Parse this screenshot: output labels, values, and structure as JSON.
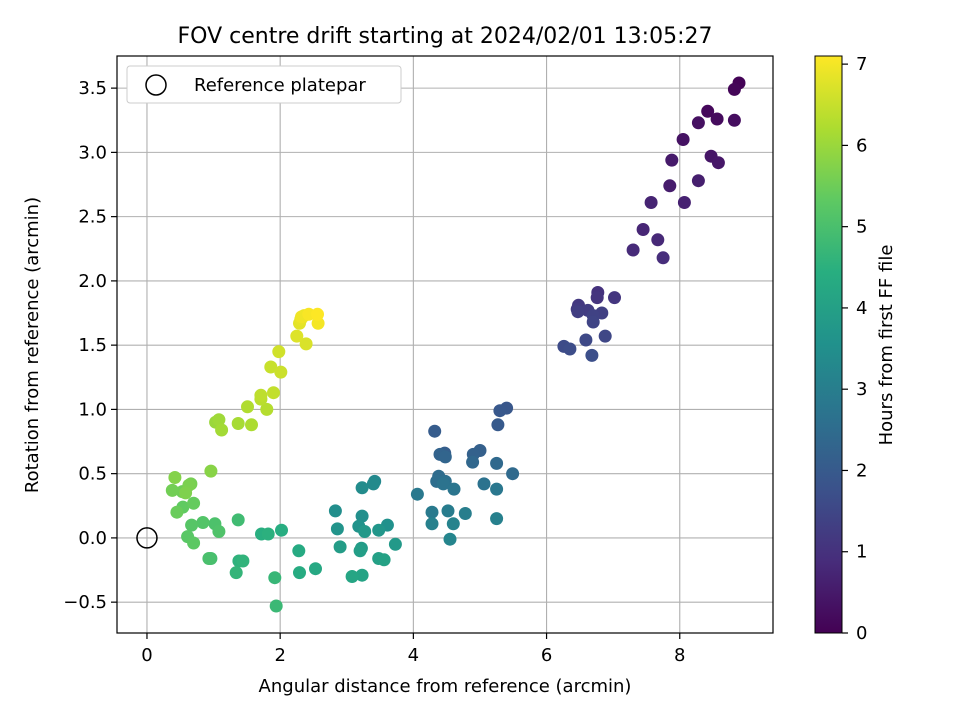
{
  "chart_data": {
    "type": "scatter",
    "title": "FOV centre drift starting at 2024/02/01 13:05:27",
    "xlabel": "Angular distance from reference (arcmin)",
    "ylabel": "Rotation from reference (arcmin)",
    "xlim": [
      -0.45,
      9.4
    ],
    "ylim": [
      -0.74,
      3.75
    ],
    "xticks": [
      0,
      2,
      4,
      6,
      8
    ],
    "xtick_labels": [
      "0",
      "2",
      "4",
      "6",
      "8"
    ],
    "yticks": [
      -0.5,
      0.0,
      0.5,
      1.0,
      1.5,
      2.0,
      2.5,
      3.0,
      3.5
    ],
    "ytick_labels": [
      "−0.5",
      "0.0",
      "0.5",
      "1.0",
      "1.5",
      "2.0",
      "2.5",
      "3.0",
      "3.5"
    ],
    "grid": true,
    "legend": {
      "position": "upper-left",
      "entries": [
        "Reference platepar"
      ]
    },
    "colorbar": {
      "label": "Hours from first FF file",
      "colormap": "viridis",
      "range": [
        0,
        7.1
      ],
      "ticks": [
        0,
        1,
        2,
        3,
        4,
        5,
        6,
        7
      ],
      "tick_labels": [
        "0",
        "1",
        "2",
        "3",
        "4",
        "5",
        "6",
        "7"
      ]
    },
    "reference_point": {
      "x": 0.0,
      "y": 0.0
    },
    "series": [
      {
        "points": [
          [
            8.89,
            3.54,
            0.05
          ],
          [
            8.82,
            3.49,
            0.1
          ],
          [
            8.42,
            3.32,
            0.15
          ],
          [
            8.56,
            3.26,
            0.2
          ],
          [
            8.82,
            3.25,
            0.25
          ],
          [
            8.28,
            3.23,
            0.3
          ],
          [
            8.05,
            3.1,
            0.35
          ],
          [
            8.47,
            2.97,
            0.4
          ],
          [
            8.58,
            2.92,
            0.45
          ],
          [
            7.88,
            2.94,
            0.5
          ],
          [
            7.85,
            2.74,
            0.55
          ],
          [
            8.28,
            2.78,
            0.6
          ],
          [
            8.07,
            2.61,
            0.65
          ],
          [
            7.57,
            2.61,
            0.7
          ],
          [
            7.45,
            2.4,
            0.75
          ],
          [
            7.67,
            2.32,
            0.8
          ],
          [
            7.3,
            2.24,
            0.85
          ],
          [
            7.75,
            2.18,
            0.9
          ],
          [
            6.77,
            1.91,
            1.0
          ],
          [
            6.76,
            1.87,
            1.05
          ],
          [
            7.02,
            1.87,
            1.1
          ],
          [
            6.48,
            1.81,
            1.15
          ],
          [
            6.46,
            1.78,
            1.2
          ],
          [
            6.62,
            1.77,
            1.25
          ],
          [
            6.47,
            1.76,
            1.3
          ],
          [
            6.83,
            1.75,
            1.35
          ],
          [
            6.7,
            1.73,
            1.4
          ],
          [
            6.7,
            1.68,
            1.45
          ],
          [
            6.88,
            1.57,
            1.5
          ],
          [
            6.59,
            1.54,
            1.55
          ],
          [
            6.26,
            1.49,
            1.6
          ],
          [
            6.35,
            1.47,
            1.65
          ],
          [
            6.68,
            1.42,
            1.7
          ],
          [
            5.4,
            1.01,
            1.9
          ],
          [
            5.3,
            0.99,
            1.95
          ],
          [
            5.27,
            0.88,
            2.0
          ],
          [
            4.32,
            0.83,
            2.05
          ],
          [
            4.47,
            0.66,
            2.1
          ],
          [
            5.0,
            0.68,
            2.15
          ],
          [
            4.9,
            0.65,
            2.2
          ],
          [
            4.4,
            0.65,
            2.25
          ],
          [
            4.48,
            0.63,
            2.3
          ],
          [
            4.89,
            0.59,
            2.35
          ],
          [
            5.25,
            0.58,
            2.4
          ],
          [
            5.49,
            0.5,
            2.45
          ],
          [
            4.38,
            0.48,
            2.5
          ],
          [
            4.35,
            0.44,
            2.55
          ],
          [
            4.48,
            0.44,
            2.6
          ],
          [
            5.06,
            0.42,
            2.65
          ],
          [
            4.45,
            0.42,
            2.7
          ],
          [
            4.61,
            0.38,
            2.75
          ],
          [
            5.25,
            0.38,
            2.8
          ],
          [
            4.06,
            0.34,
            2.85
          ],
          [
            4.28,
            0.2,
            2.9
          ],
          [
            4.52,
            0.21,
            2.95
          ],
          [
            4.78,
            0.19,
            3.0
          ],
          [
            5.25,
            0.15,
            3.05
          ],
          [
            4.28,
            0.11,
            3.1
          ],
          [
            4.6,
            0.11,
            3.15
          ],
          [
            4.55,
            -0.01,
            3.2
          ],
          [
            3.42,
            0.44,
            3.3
          ],
          [
            3.4,
            0.42,
            3.35
          ],
          [
            3.23,
            0.39,
            3.4
          ],
          [
            2.83,
            0.21,
            3.45
          ],
          [
            3.23,
            0.17,
            3.5
          ],
          [
            3.61,
            0.1,
            3.55
          ],
          [
            3.18,
            0.09,
            3.6
          ],
          [
            2.86,
            0.07,
            3.65
          ],
          [
            3.48,
            0.06,
            3.7
          ],
          [
            3.27,
            0.05,
            3.75
          ],
          [
            3.73,
            -0.05,
            3.8
          ],
          [
            3.22,
            -0.08,
            3.85
          ],
          [
            2.9,
            -0.07,
            3.9
          ],
          [
            3.2,
            -0.1,
            3.95
          ],
          [
            3.48,
            -0.16,
            4.0
          ],
          [
            3.56,
            -0.17,
            4.05
          ],
          [
            3.23,
            -0.29,
            4.1
          ],
          [
            3.08,
            -0.3,
            4.15
          ],
          [
            2.53,
            -0.24,
            4.25
          ],
          [
            2.28,
            -0.1,
            4.3
          ],
          [
            2.29,
            -0.27,
            4.35
          ],
          [
            2.02,
            0.06,
            4.4
          ],
          [
            1.72,
            0.03,
            4.45
          ],
          [
            1.82,
            0.03,
            4.5
          ],
          [
            1.38,
            -0.18,
            4.55
          ],
          [
            1.44,
            -0.18,
            4.6
          ],
          [
            1.34,
            -0.27,
            4.65
          ],
          [
            1.92,
            -0.31,
            4.7
          ],
          [
            1.94,
            -0.53,
            4.75
          ],
          [
            1.37,
            0.14,
            4.85
          ],
          [
            0.96,
            -0.16,
            4.95
          ],
          [
            0.93,
            -0.16,
            5.0
          ],
          [
            1.02,
            0.11,
            5.05
          ],
          [
            1.08,
            0.05,
            5.1
          ],
          [
            0.84,
            0.12,
            5.15
          ],
          [
            0.67,
            0.1,
            5.2
          ],
          [
            0.61,
            0.01,
            5.25
          ],
          [
            0.7,
            -0.04,
            5.3
          ],
          [
            0.54,
            0.24,
            5.35
          ],
          [
            0.7,
            0.27,
            5.4
          ],
          [
            0.45,
            0.2,
            5.45
          ],
          [
            0.53,
            0.36,
            5.5
          ],
          [
            0.38,
            0.37,
            5.55
          ],
          [
            0.66,
            0.42,
            5.6
          ],
          [
            0.63,
            0.41,
            5.65
          ],
          [
            0.58,
            0.35,
            5.7
          ],
          [
            0.42,
            0.47,
            5.75
          ],
          [
            0.96,
            0.52,
            5.8
          ],
          [
            1.03,
            0.9,
            6.0
          ],
          [
            1.08,
            0.92,
            6.05
          ],
          [
            1.12,
            0.84,
            6.1
          ],
          [
            1.37,
            0.89,
            6.15
          ],
          [
            1.57,
            0.88,
            6.2
          ],
          [
            1.51,
            1.02,
            6.25
          ],
          [
            1.8,
            1.0,
            6.3
          ],
          [
            1.71,
            1.08,
            6.35
          ],
          [
            1.71,
            1.11,
            6.4
          ],
          [
            1.9,
            1.13,
            6.45
          ],
          [
            1.86,
            1.33,
            6.5
          ],
          [
            2.01,
            1.29,
            6.55
          ],
          [
            1.98,
            1.45,
            6.6
          ],
          [
            2.39,
            1.51,
            6.7
          ],
          [
            2.25,
            1.57,
            6.75
          ],
          [
            2.29,
            1.67,
            6.8
          ],
          [
            2.31,
            1.7,
            6.85
          ],
          [
            2.36,
            1.73,
            6.9
          ],
          [
            2.32,
            1.72,
            6.95
          ],
          [
            2.57,
            1.67,
            7.0
          ],
          [
            2.43,
            1.74,
            7.05
          ],
          [
            2.56,
            1.74,
            7.1
          ]
        ]
      }
    ]
  }
}
